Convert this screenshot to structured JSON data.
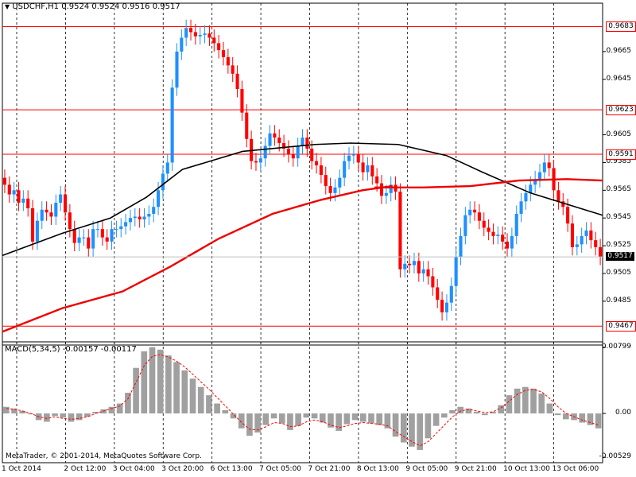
{
  "header": {
    "symbol": "USDCHF,H1",
    "ohlc": "0.9524 0.9524 0.9516 0.9517"
  },
  "macd_header": "MACD(5,34,5) -0.00157 -0.00117",
  "footer_credit": "MetaTrader, © 2001-2014, MetaQuotes Software Corp.",
  "colors": {
    "bull": "#1e90ff",
    "bear": "#ff0000",
    "ma_fast": "#000000",
    "ma_mid": "#dd1111",
    "ma_slow": "#ee0000",
    "level": "#ff0000",
    "macd_hist": "#a0a0a0",
    "macd_signal": "#ff0000"
  },
  "chart_data": {
    "type": "candlestick",
    "symbol": "USDCHF",
    "timeframe": "H1",
    "price_axis": {
      "ticks": [
        0.9665,
        0.9645,
        0.9605,
        0.9585,
        0.9565,
        0.9545,
        0.9525,
        0.9505,
        0.9485
      ],
      "ylim": [
        0.9458,
        0.9693
      ]
    },
    "time_axis": {
      "labels": [
        "1 Oct 2014",
        "2 Oct 12:00",
        "3 Oct 04:00",
        "3 Oct 20:00",
        "6 Oct 13:00",
        "7 Oct 05:00",
        "7 Oct 21:00",
        "8 Oct 13:00",
        "9 Oct 05:00",
        "9 Oct 21:00",
        "10 Oct 13:00",
        "13 Oct 06:00"
      ]
    },
    "levels": [
      {
        "label": "0.9683",
        "value": 0.9683
      },
      {
        "label": "0.9623",
        "value": 0.9623
      },
      {
        "label": "0.9591",
        "value": 0.9591
      },
      {
        "label": "0.9467",
        "value": 0.9467
      }
    ],
    "current_price": {
      "label": "0.9517",
      "value": 0.9517
    },
    "close_path": [
      0.9569,
      0.9562,
      0.9565,
      0.9556,
      0.9559,
      0.9552,
      0.9528,
      0.9543,
      0.9551,
      0.9549,
      0.9546,
      0.9556,
      0.9562,
      0.9549,
      0.9537,
      0.9527,
      0.9531,
      0.9531,
      0.9523,
      0.9537,
      0.9537,
      0.9531,
      0.9528,
      0.9537,
      0.9537,
      0.9539,
      0.9542,
      0.9545,
      0.9546,
      0.9544,
      0.9546,
      0.9548,
      0.9553,
      0.9565,
      0.9577,
      0.9585,
      0.9639,
      0.9665,
      0.9675,
      0.9682,
      0.9679,
      0.9676,
      0.9677,
      0.9678,
      0.9675,
      0.9671,
      0.9666,
      0.9661,
      0.9655,
      0.9649,
      0.9638,
      0.9621,
      0.9602,
      0.9586,
      0.9585,
      0.9588,
      0.9597,
      0.9606,
      0.9603,
      0.9599,
      0.9595,
      0.9591,
      0.9588,
      0.9597,
      0.9603,
      0.9595,
      0.9586,
      0.9583,
      0.9576,
      0.9568,
      0.9563,
      0.9567,
      0.9574,
      0.9586,
      0.959,
      0.9591,
      0.9585,
      0.9578,
      0.9583,
      0.9575,
      0.957,
      0.9561,
      0.9563,
      0.9569,
      0.9564,
      0.9508,
      0.9512,
      0.9511,
      0.9514,
      0.9505,
      0.9508,
      0.9503,
      0.9495,
      0.9486,
      0.9477,
      0.9484,
      0.9496,
      0.9517,
      0.9532,
      0.9547,
      0.9551,
      0.9549,
      0.9543,
      0.9538,
      0.9535,
      0.9532,
      0.9533,
      0.9528,
      0.9523,
      0.9532,
      0.9548,
      0.9557,
      0.9563,
      0.9569,
      0.9573,
      0.9578,
      0.9585,
      0.9581,
      0.9565,
      0.9557,
      0.9553,
      0.9541,
      0.9524,
      0.9526,
      0.9532,
      0.9536,
      0.9529,
      0.9524,
      0.9517
    ],
    "moving_averages": [
      {
        "color": "black",
        "path": [
          [
            0,
            0.9518
          ],
          [
            0.1,
            0.9534
          ],
          [
            0.18,
            0.9545
          ],
          [
            0.24,
            0.956
          ],
          [
            0.3,
            0.958
          ],
          [
            0.4,
            0.9593
          ],
          [
            0.52,
            0.9598
          ],
          [
            0.58,
            0.9599
          ],
          [
            0.66,
            0.9598
          ],
          [
            0.74,
            0.959
          ],
          [
            0.8,
            0.9578
          ],
          [
            0.88,
            0.9563
          ],
          [
            1.0,
            0.9547
          ]
        ]
      },
      {
        "color": "red",
        "path": [
          [
            0.62,
            0.9567
          ],
          [
            0.7,
            0.9567
          ],
          [
            0.78,
            0.9568
          ],
          [
            0.86,
            0.9572
          ],
          [
            0.94,
            0.9573
          ],
          [
            1.0,
            0.9572
          ]
        ]
      },
      {
        "color": "red",
        "path": [
          [
            0,
            0.9463
          ],
          [
            0.1,
            0.948
          ],
          [
            0.2,
            0.9492
          ],
          [
            0.28,
            0.951
          ],
          [
            0.36,
            0.953
          ],
          [
            0.45,
            0.9548
          ],
          [
            0.53,
            0.9558
          ],
          [
            0.6,
            0.9565
          ],
          [
            0.65,
            0.9568
          ]
        ]
      }
    ],
    "macd": {
      "label": "MACD(5,34,5) -0.00157 -0.00117",
      "ticks": [
        0.00799,
        0.0,
        -0.00529
      ],
      "ylim": [
        -0.00575,
        0.00845
      ],
      "histogram_path": [
        0.0008,
        0.0006,
        0.0003,
        -0.0001,
        -0.0008,
        -0.001,
        -0.0003,
        -0.0005,
        -0.001,
        -0.0008,
        -0.0004,
        0.0002,
        0.0005,
        0.0008,
        0.0012,
        0.0025,
        0.0055,
        0.0075,
        0.008,
        0.0077,
        0.007,
        0.0062,
        0.0052,
        0.0042,
        0.0032,
        0.0022,
        0.0012,
        0.0004,
        -0.0006,
        -0.0018,
        -0.0027,
        -0.0023,
        -0.0014,
        -0.0006,
        -0.0012,
        -0.002,
        -0.0015,
        -0.0005,
        -0.0006,
        -0.0011,
        -0.0017,
        -0.0021,
        -0.0013,
        -0.0008,
        -0.001,
        -0.0012,
        -0.0014,
        -0.0018,
        -0.0028,
        -0.0035,
        -0.004,
        -0.0044,
        -0.003,
        -0.0015,
        -0.0005,
        0.0004,
        0.0008,
        0.0006,
        0.0002,
        -0.0002,
        0.0002,
        0.001,
        0.0022,
        0.003,
        0.0032,
        0.003,
        0.0024,
        0.0012,
        -0.0002,
        -0.0007,
        -0.0008,
        -0.0011,
        -0.0014,
        -0.0018
      ],
      "signal_path": [
        0.0006,
        0.0005,
        0.0003,
        0.0,
        -0.0004,
        -0.0006,
        -0.0004,
        -0.0006,
        -0.0007,
        -0.0006,
        -0.0004,
        0.0,
        0.0003,
        0.0006,
        0.0009,
        0.0018,
        0.0038,
        0.0058,
        0.0069,
        0.0071,
        0.0068,
        0.0063,
        0.0056,
        0.0047,
        0.0038,
        0.0029,
        0.0019,
        0.0009,
        -0.0001,
        -0.0011,
        -0.0019,
        -0.002,
        -0.0016,
        -0.0011,
        -0.0012,
        -0.0016,
        -0.0015,
        -0.001,
        -0.0008,
        -0.001,
        -0.0014,
        -0.0017,
        -0.0015,
        -0.0012,
        -0.0011,
        -0.0012,
        -0.0013,
        -0.0015,
        -0.0022,
        -0.0028,
        -0.0034,
        -0.0039,
        -0.0034,
        -0.0024,
        -0.0014,
        -0.0004,
        0.0003,
        0.0005,
        0.0003,
        0.0001,
        0.0002,
        0.0007,
        0.0015,
        0.0023,
        0.0028,
        0.0029,
        0.0026,
        0.0018,
        0.0008,
        0.0,
        -0.0004,
        -0.0008,
        -0.0011,
        -0.0014
      ]
    }
  }
}
